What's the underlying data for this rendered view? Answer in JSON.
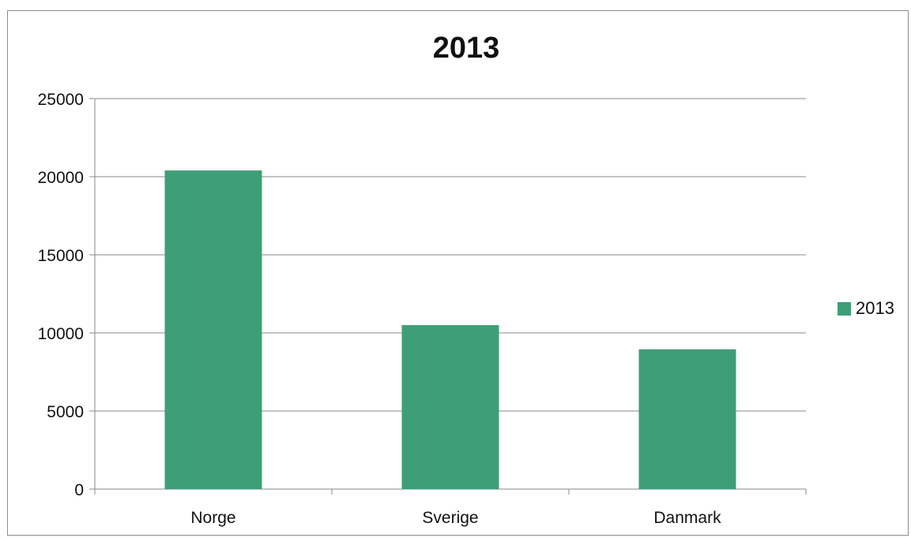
{
  "chart_data": {
    "type": "bar",
    "title": "2013",
    "categories": [
      "Norge",
      "Sverige",
      "Danmark"
    ],
    "series": [
      {
        "name": "2013",
        "values": [
          20400,
          10500,
          8950
        ]
      }
    ],
    "ylim": [
      0,
      25000
    ],
    "yticks": [
      "0",
      "5000",
      "10000",
      "15000",
      "20000",
      "25000"
    ],
    "grid": true,
    "legend_position": "right",
    "bar_color": "#3e9e78"
  }
}
